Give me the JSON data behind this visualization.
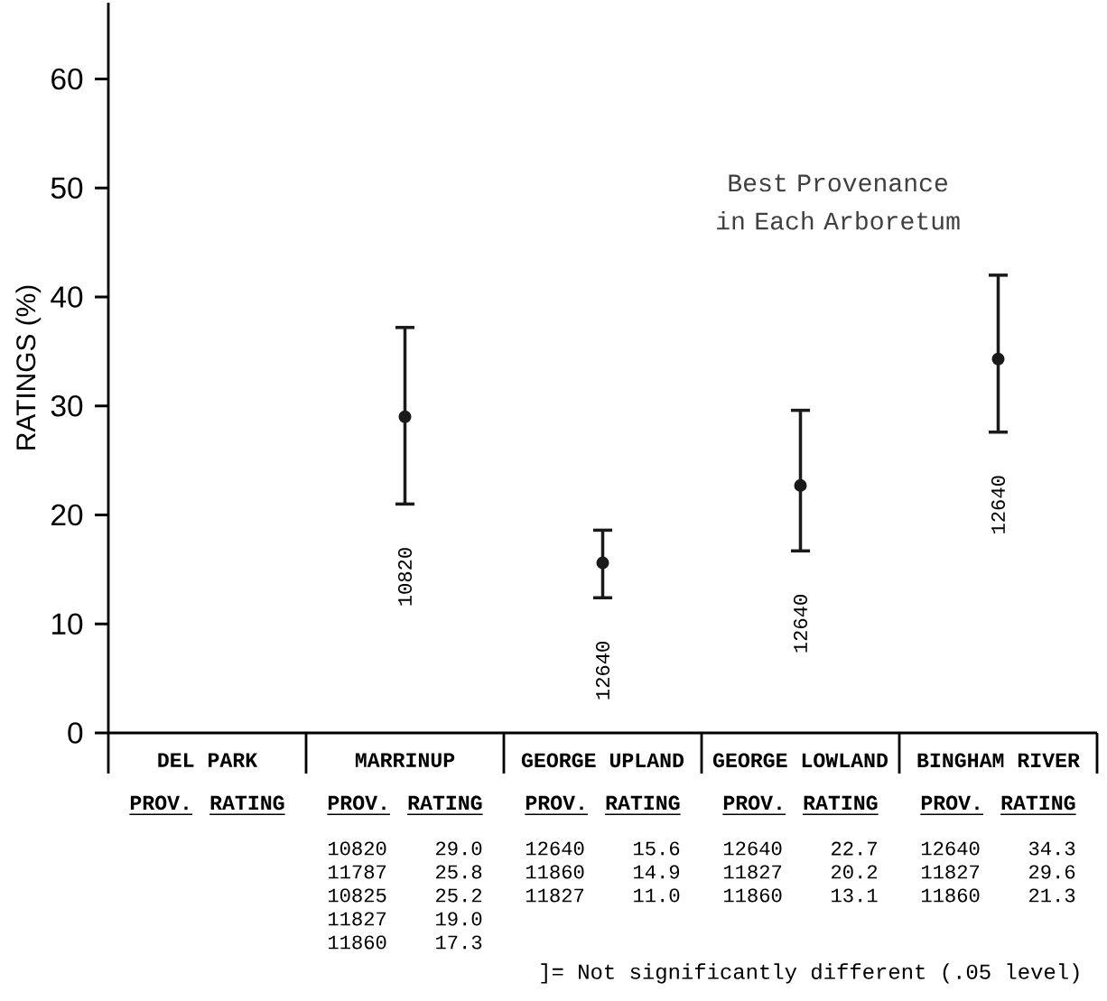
{
  "chart_data": {
    "type": "scatter",
    "title": "Best Provenance in Each Arboretum",
    "ylabel": "RATINGS (%)",
    "categories": [
      "DEL PARK",
      "MARRINUP",
      "GEORGE UPLAND",
      "GEORGE LOWLAND",
      "BINGHAM RIVER"
    ],
    "values": [
      null,
      29.0,
      15.6,
      22.7,
      34.3
    ],
    "errors": [
      null,
      [
        21.0,
        37.2
      ],
      [
        12.4,
        18.6
      ],
      [
        16.7,
        29.6
      ],
      [
        27.6,
        42.0
      ]
    ],
    "color": "#1a1a1a",
    "marker": "circle",
    "ylim": [
      0,
      67
    ],
    "yticks": [
      0,
      10,
      20,
      30,
      40,
      50,
      60
    ],
    "annotations": [
      "10820",
      "12640",
      "12640",
      "12640",
      "PROV.",
      "RATING",
      "PROV.",
      "RATING",
      "10820",
      "29.0",
      "11787",
      "25.8",
      "10825",
      "25.2",
      "11827",
      "19.0",
      "11860",
      "17.3",
      "PROV.",
      "RATING",
      "12640",
      "15.6",
      "11860",
      "14.9",
      "11827",
      "11.0",
      "PROV.",
      "RATING",
      "12640",
      "22.7",
      "11827",
      "20.2",
      "11860",
      "13.1",
      "PROV.",
      "RATING",
      "12640",
      "34.3",
      "11827",
      "29.6",
      "11860",
      "21.3",
      "]= Not significantly different (.05 level)"
    ]
  }
}
